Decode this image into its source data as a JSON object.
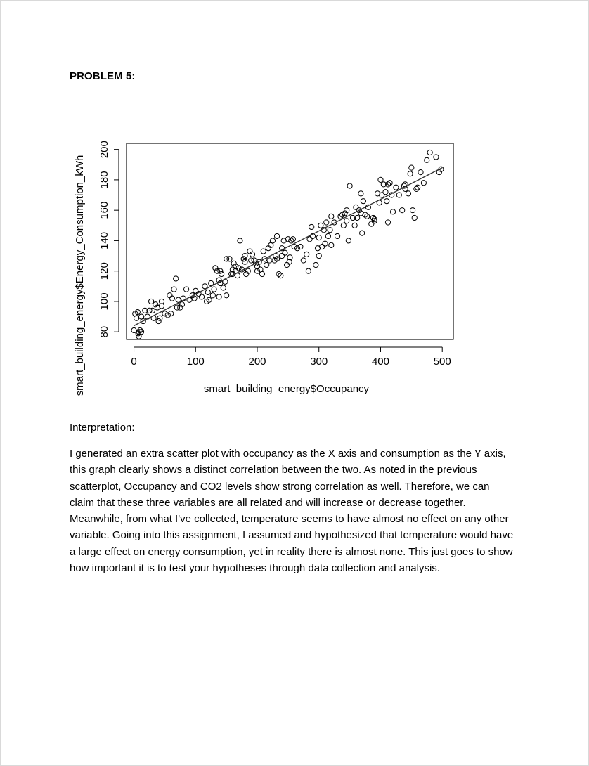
{
  "document": {
    "heading": "PROBLEM 5:",
    "interpretation_label": "Interpretation:",
    "paragraph": "I generated an extra scatter plot with occupancy as the X axis and consumption as the Y axis, this graph clearly shows a distinct correlation between the two. As noted in the previous scatterplot, Occupancy and CO2 levels show strong correlation as well. Therefore, we can claim that these three variables are all related and will increase or decrease together. Meanwhile, from what I've collected, temperature seems to have almost no effect on any other variable. Going into this assignment, I assumed and hypothesized that temperature would have a large effect on energy consumption, yet in reality there is almost none. This just goes to show how important it is to test your hypotheses through data collection and analysis."
  },
  "chart_data": {
    "type": "scatter",
    "title": "",
    "xlabel": "smart_building_energy$Occupancy",
    "ylabel": "smart_building_energy$Energy_Consumption_kWh",
    "xlim": [
      -12,
      518
    ],
    "ylim": [
      75,
      204
    ],
    "x_ticks": [
      "0",
      "100",
      "200",
      "300",
      "400",
      "500"
    ],
    "y_ticks": [
      "80",
      "100",
      "120",
      "140",
      "160",
      "180",
      "200"
    ],
    "trend_line": {
      "x": [
        0,
        500
      ],
      "y": [
        84,
        188
      ]
    },
    "series": [
      {
        "x": [
          0,
          2,
          4,
          7,
          8,
          10,
          12,
          15,
          18,
          22,
          25,
          28,
          32,
          35,
          38,
          40,
          42,
          45,
          50,
          55,
          58,
          62,
          65,
          68,
          72,
          75,
          78,
          80,
          85,
          90,
          95,
          98,
          100,
          105,
          110,
          115,
          118,
          120,
          122,
          125,
          128,
          130,
          132,
          135,
          138,
          140,
          142,
          145,
          148,
          150,
          155,
          158,
          160,
          162,
          165,
          168,
          170,
          172,
          175,
          178,
          180,
          182,
          185,
          188,
          190,
          192,
          195,
          198,
          200,
          203,
          205,
          208,
          210,
          212,
          215,
          218,
          220,
          222,
          225,
          228,
          230,
          232,
          235,
          238,
          240,
          243,
          245,
          248,
          250,
          253,
          255,
          258,
          260,
          265,
          270,
          275,
          280,
          283,
          285,
          288,
          290,
          295,
          298,
          300,
          303,
          305,
          308,
          310,
          312,
          315,
          318,
          320,
          325,
          330,
          335,
          338,
          340,
          342,
          345,
          348,
          350,
          355,
          358,
          360,
          362,
          365,
          368,
          370,
          372,
          375,
          378,
          380,
          385,
          388,
          390,
          395,
          398,
          400,
          402,
          405,
          408,
          410,
          412,
          415,
          418,
          420,
          425,
          430,
          435,
          438,
          440,
          445,
          448,
          450,
          452,
          455,
          458,
          460,
          465,
          470,
          475,
          480,
          490,
          495,
          498,
          8,
          12,
          45,
          70,
          138,
          165,
          200,
          232,
          252,
          300,
          345,
          368,
          412,
          6,
          30,
          60,
          140,
          180,
          240,
          320,
          390,
          440,
          160,
          150
        ],
        "y": [
          81,
          92,
          89,
          79,
          80,
          81,
          90,
          87,
          94,
          90,
          94,
          100,
          89,
          98,
          96,
          87,
          89,
          97,
          92,
          91,
          104,
          102,
          108,
          115,
          101,
          96,
          98,
          102,
          108,
          101,
          104,
          102,
          107,
          105,
          103,
          110,
          100,
          106,
          101,
          112,
          104,
          108,
          122,
          120,
          114,
          112,
          118,
          109,
          113,
          104,
          128,
          118,
          118,
          125,
          120,
          117,
          122,
          140,
          121,
          128,
          126,
          118,
          120,
          133,
          127,
          131,
          127,
          125,
          120,
          126,
          121,
          118,
          133,
          128,
          124,
          135,
          127,
          137,
          140,
          127,
          130,
          128,
          118,
          117,
          135,
          140,
          132,
          124,
          141,
          129,
          140,
          141,
          136,
          135,
          136,
          127,
          131,
          120,
          141,
          149,
          143,
          124,
          135,
          142,
          150,
          136,
          147,
          138,
          152,
          143,
          147,
          137,
          152,
          143,
          156,
          157,
          150,
          158,
          153,
          140,
          176,
          155,
          150,
          162,
          155,
          160,
          158,
          145,
          166,
          157,
          156,
          162,
          151,
          155,
          153,
          171,
          165,
          180,
          170,
          177,
          172,
          166,
          177,
          178,
          170,
          159,
          175,
          170,
          160,
          176,
          177,
          171,
          184,
          188,
          160,
          155,
          174,
          175,
          185,
          178,
          193,
          198,
          195,
          185,
          187,
          77,
          80,
          100,
          96,
          103,
          123,
          123,
          143,
          126,
          130,
          160,
          171,
          152,
          93,
          94,
          92,
          120,
          130,
          130,
          156,
          154,
          174,
          121,
          128
        ]
      }
    ]
  }
}
